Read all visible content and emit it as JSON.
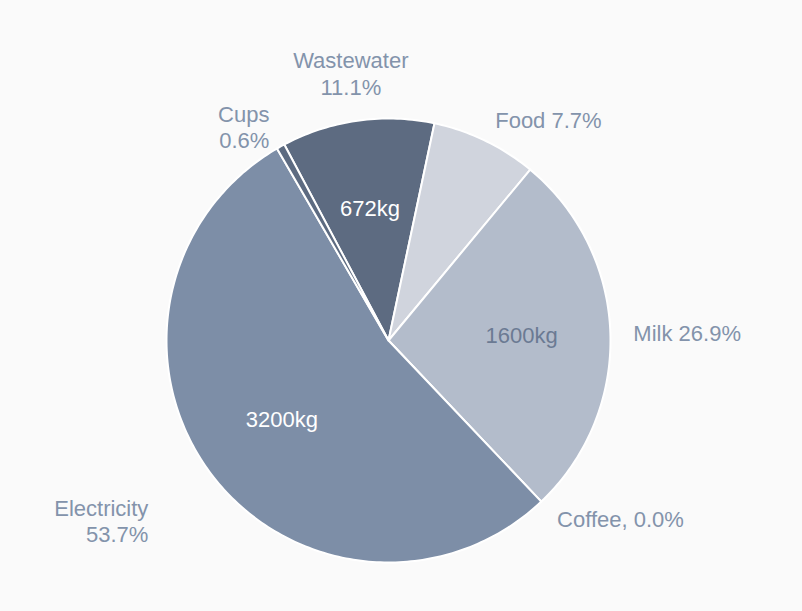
{
  "chart_data": {
    "type": "pie",
    "categories": [
      "Wastewater",
      "Food",
      "Milk",
      "Coffee",
      "Electricity",
      "Cups"
    ],
    "values": [
      11.1,
      7.7,
      26.9,
      0.0,
      53.7,
      0.6
    ],
    "value_labels": [
      "Wastewater\n11.1%",
      "Food 7.7%",
      "Milk 26.9%",
      "Coffee, 0.0%",
      "Electricity\n53.7%",
      "Cups\n0.6%"
    ],
    "amount_labels": [
      "672kg",
      null,
      "1600kg",
      null,
      "3200kg",
      null
    ],
    "colors": [
      "#5d6b81",
      "#d0d4dd",
      "#b3bccb",
      "#9aa6b9",
      "#7d8ea7",
      "#5d6b81"
    ],
    "data_labels": true
  }
}
